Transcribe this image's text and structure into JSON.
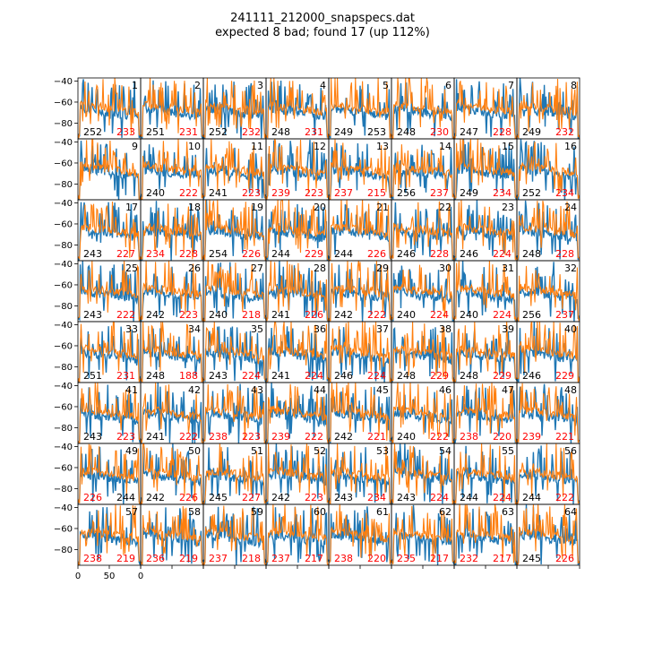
{
  "title": "241111_212000_snapspecs.dat",
  "subtitle": "expected 8 bad; found 17 (up 112%)",
  "chart_data": {
    "type": "line",
    "grid": {
      "rows": 8,
      "cols": 8
    },
    "xlim": [
      0,
      100
    ],
    "ylim": [
      -95,
      -37
    ],
    "x_ticks": [
      "0",
      "50",
      "0"
    ],
    "y_ticks": [
      -40,
      -60,
      -80
    ],
    "series": [
      {
        "color": "#1f77b4"
      },
      {
        "color": "#ff7f0e"
      }
    ],
    "label_colors": {
      "black": "#000000",
      "red": "#ff0000"
    },
    "panels": [
      {
        "n": "1",
        "a": "252",
        "b": "233",
        "ac": "black",
        "bc": "red"
      },
      {
        "n": "2",
        "a": "251",
        "b": "231",
        "ac": "black",
        "bc": "red"
      },
      {
        "n": "3",
        "a": "252",
        "b": "232",
        "ac": "black",
        "bc": "red"
      },
      {
        "n": "4",
        "a": "248",
        "b": "231",
        "ac": "black",
        "bc": "red"
      },
      {
        "n": "5",
        "a": "249",
        "b": "253",
        "ac": "black",
        "bc": "black"
      },
      {
        "n": "6",
        "a": "248",
        "b": "230",
        "ac": "black",
        "bc": "red"
      },
      {
        "n": "7",
        "a": "247",
        "b": "228",
        "ac": "black",
        "bc": "red"
      },
      {
        "n": "8",
        "a": "249",
        "b": "232",
        "ac": "black",
        "bc": "red"
      },
      {
        "n": "9",
        "a": "",
        "b": "",
        "ac": "red",
        "bc": "red"
      },
      {
        "n": "10",
        "a": "240",
        "b": "222",
        "ac": "black",
        "bc": "red"
      },
      {
        "n": "11",
        "a": "241",
        "b": "223",
        "ac": "black",
        "bc": "red"
      },
      {
        "n": "12",
        "a": "239",
        "b": "223",
        "ac": "red",
        "bc": "red"
      },
      {
        "n": "13",
        "a": "237",
        "b": "215",
        "ac": "red",
        "bc": "red"
      },
      {
        "n": "14",
        "a": "256",
        "b": "237",
        "ac": "black",
        "bc": "red"
      },
      {
        "n": "15",
        "a": "249",
        "b": "234",
        "ac": "black",
        "bc": "red"
      },
      {
        "n": "16",
        "a": "252",
        "b": "234",
        "ac": "black",
        "bc": "red"
      },
      {
        "n": "17",
        "a": "243",
        "b": "227",
        "ac": "black",
        "bc": "red"
      },
      {
        "n": "18",
        "a": "234",
        "b": "228",
        "ac": "red",
        "bc": "red"
      },
      {
        "n": "19",
        "a": "254",
        "b": "226",
        "ac": "black",
        "bc": "red"
      },
      {
        "n": "20",
        "a": "244",
        "b": "229",
        "ac": "black",
        "bc": "red"
      },
      {
        "n": "21",
        "a": "244",
        "b": "226",
        "ac": "black",
        "bc": "red"
      },
      {
        "n": "22",
        "a": "246",
        "b": "228",
        "ac": "black",
        "bc": "red"
      },
      {
        "n": "23",
        "a": "246",
        "b": "224",
        "ac": "black",
        "bc": "red"
      },
      {
        "n": "24",
        "a": "248",
        "b": "228",
        "ac": "black",
        "bc": "red"
      },
      {
        "n": "25",
        "a": "243",
        "b": "222",
        "ac": "black",
        "bc": "red"
      },
      {
        "n": "26",
        "a": "242",
        "b": "223",
        "ac": "black",
        "bc": "red"
      },
      {
        "n": "27",
        "a": "240",
        "b": "218",
        "ac": "black",
        "bc": "red"
      },
      {
        "n": "28",
        "a": "241",
        "b": "226",
        "ac": "black",
        "bc": "red"
      },
      {
        "n": "29",
        "a": "242",
        "b": "222",
        "ac": "black",
        "bc": "red"
      },
      {
        "n": "30",
        "a": "240",
        "b": "224",
        "ac": "black",
        "bc": "red"
      },
      {
        "n": "31",
        "a": "240",
        "b": "224",
        "ac": "black",
        "bc": "red"
      },
      {
        "n": "32",
        "a": "256",
        "b": "237",
        "ac": "black",
        "bc": "red"
      },
      {
        "n": "33",
        "a": "251",
        "b": "231",
        "ac": "black",
        "bc": "red"
      },
      {
        "n": "34",
        "a": "248",
        "b": "188",
        "ac": "black",
        "bc": "red"
      },
      {
        "n": "35",
        "a": "243",
        "b": "224",
        "ac": "black",
        "bc": "red"
      },
      {
        "n": "36",
        "a": "241",
        "b": "224",
        "ac": "black",
        "bc": "red"
      },
      {
        "n": "37",
        "a": "246",
        "b": "224",
        "ac": "black",
        "bc": "red"
      },
      {
        "n": "38",
        "a": "248",
        "b": "229",
        "ac": "black",
        "bc": "red"
      },
      {
        "n": "39",
        "a": "248",
        "b": "229",
        "ac": "black",
        "bc": "red"
      },
      {
        "n": "40",
        "a": "246",
        "b": "229",
        "ac": "black",
        "bc": "red"
      },
      {
        "n": "41",
        "a": "243",
        "b": "223",
        "ac": "black",
        "bc": "red"
      },
      {
        "n": "42",
        "a": "241",
        "b": "222",
        "ac": "black",
        "bc": "red"
      },
      {
        "n": "43",
        "a": "238",
        "b": "223",
        "ac": "red",
        "bc": "red"
      },
      {
        "n": "44",
        "a": "239",
        "b": "222",
        "ac": "red",
        "bc": "red"
      },
      {
        "n": "45",
        "a": "242",
        "b": "221",
        "ac": "black",
        "bc": "red"
      },
      {
        "n": "46",
        "a": "240",
        "b": "222",
        "ac": "black",
        "bc": "red"
      },
      {
        "n": "47",
        "a": "238",
        "b": "220",
        "ac": "red",
        "bc": "red"
      },
      {
        "n": "48",
        "a": "239",
        "b": "221",
        "ac": "red",
        "bc": "red"
      },
      {
        "n": "49",
        "a": "226",
        "b": "244",
        "ac": "red",
        "bc": "black"
      },
      {
        "n": "50",
        "a": "242",
        "b": "226",
        "ac": "black",
        "bc": "red"
      },
      {
        "n": "51",
        "a": "245",
        "b": "227",
        "ac": "black",
        "bc": "red"
      },
      {
        "n": "52",
        "a": "242",
        "b": "223",
        "ac": "black",
        "bc": "red"
      },
      {
        "n": "53",
        "a": "243",
        "b": "234",
        "ac": "black",
        "bc": "red"
      },
      {
        "n": "54",
        "a": "243",
        "b": "224",
        "ac": "black",
        "bc": "red"
      },
      {
        "n": "55",
        "a": "244",
        "b": "224",
        "ac": "black",
        "bc": "red"
      },
      {
        "n": "56",
        "a": "244",
        "b": "222",
        "ac": "black",
        "bc": "red"
      },
      {
        "n": "57",
        "a": "238",
        "b": "219",
        "ac": "red",
        "bc": "red"
      },
      {
        "n": "58",
        "a": "236",
        "b": "219",
        "ac": "red",
        "bc": "red"
      },
      {
        "n": "59",
        "a": "237",
        "b": "218",
        "ac": "red",
        "bc": "red"
      },
      {
        "n": "60",
        "a": "237",
        "b": "217",
        "ac": "red",
        "bc": "red"
      },
      {
        "n": "61",
        "a": "238",
        "b": "220",
        "ac": "red",
        "bc": "red"
      },
      {
        "n": "62",
        "a": "235",
        "b": "217",
        "ac": "red",
        "bc": "red"
      },
      {
        "n": "63",
        "a": "232",
        "b": "217",
        "ac": "red",
        "bc": "red"
      },
      {
        "n": "64",
        "a": "245",
        "b": "226",
        "ac": "black",
        "bc": "red"
      }
    ]
  }
}
